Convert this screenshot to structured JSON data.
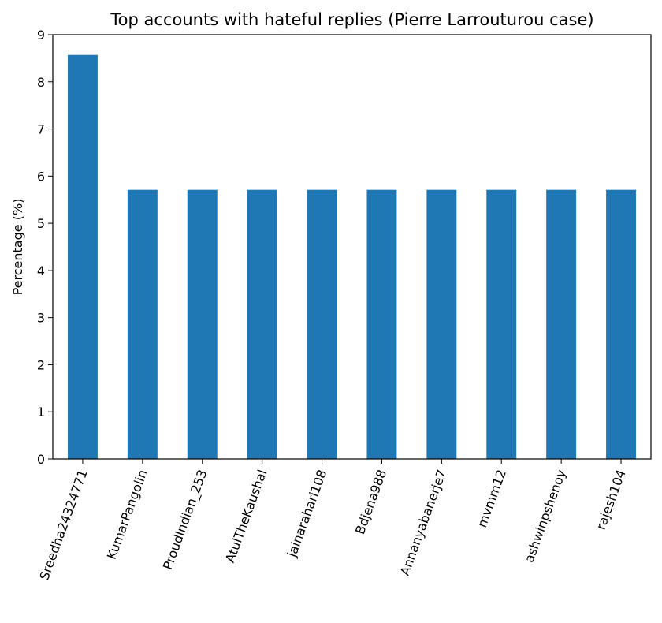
{
  "chart_data": {
    "type": "bar",
    "title": "Top accounts with hateful replies (Pierre Larrouturou case)",
    "xlabel": "",
    "ylabel": "Percentage (%)",
    "categories": [
      "Sreedha24324771",
      "KumarPangolin",
      "ProudIndian_253",
      "AtulTheKaushal",
      "jainarahari108",
      "Bdjena988",
      "Annanyabanerje7",
      "mvmm12",
      "ashwinpshenoy",
      "rajesh104"
    ],
    "values": [
      8.57,
      5.71,
      5.71,
      5.71,
      5.71,
      5.71,
      5.71,
      5.71,
      5.71,
      5.71
    ],
    "ylim": [
      0,
      9
    ],
    "yticks": [
      "0",
      "1",
      "2",
      "3",
      "4",
      "5",
      "6",
      "7",
      "8",
      "9"
    ],
    "grid": false,
    "colors": {
      "bar": "#1f77b4",
      "axis": "#000000"
    }
  }
}
